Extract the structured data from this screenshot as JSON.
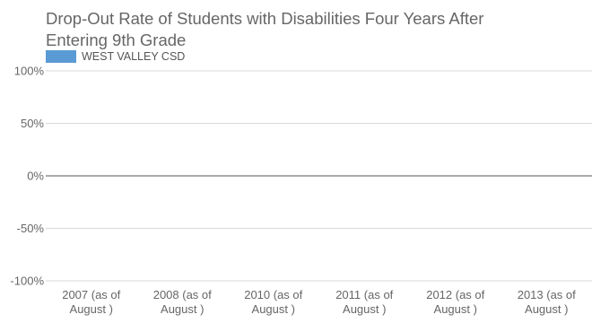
{
  "chart_data": {
    "type": "bar",
    "title": "Drop-Out Rate of Students with Disabilities Four Years After Entering 9th Grade",
    "categories": [
      [
        "2007 (as of",
        "August )"
      ],
      [
        "2008 (as of",
        "August )"
      ],
      [
        "2010 (as of",
        "August )"
      ],
      [
        "2011 (as of",
        "August )"
      ],
      [
        "2012 (as of",
        "August )"
      ],
      [
        "2013 (as of",
        "August )"
      ]
    ],
    "series": [
      {
        "name": "WEST VALLEY CSD",
        "color": "#5b9bd5",
        "values": [
          0,
          0,
          0,
          0,
          0,
          0
        ]
      }
    ],
    "yticks": [
      "100%",
      "50%",
      "0%",
      "-50%",
      "-100%"
    ],
    "ylim": [
      -100,
      100
    ],
    "grid": true,
    "legend": "top-left"
  }
}
